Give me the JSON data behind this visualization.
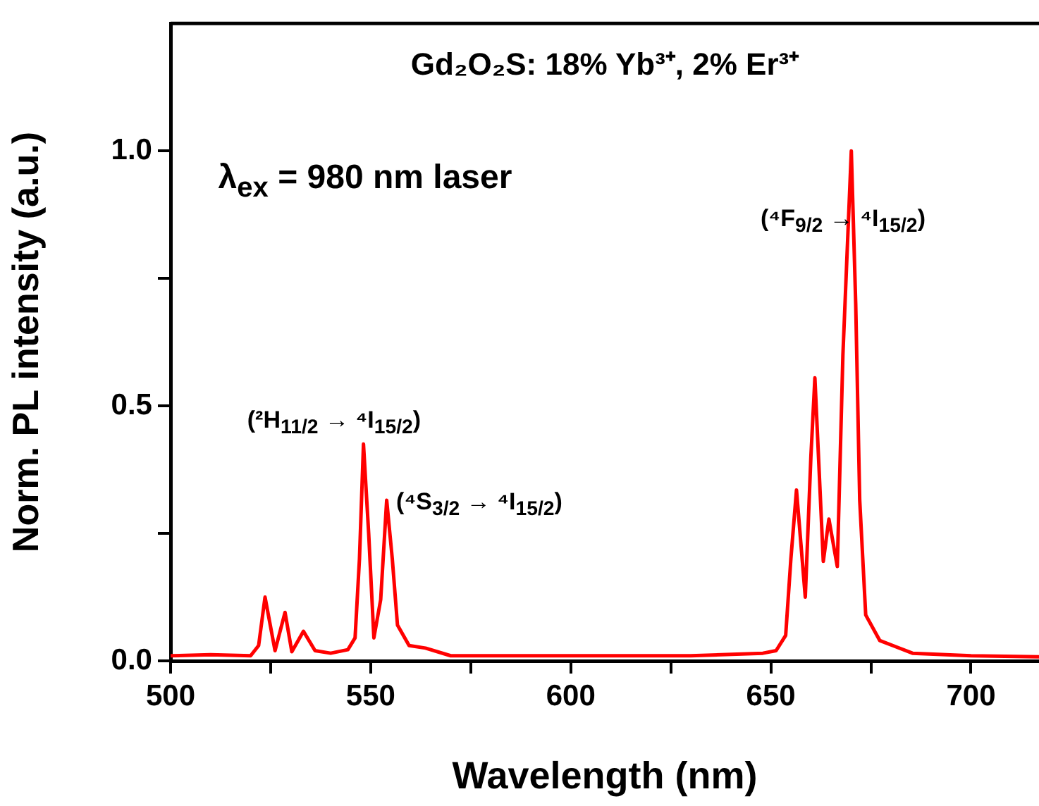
{
  "chart_data": {
    "type": "line",
    "title": "Gd₂O₂S: 18% Yb³⁺, 2% Er³⁺",
    "xlabel": "Wavelength (nm)",
    "ylabel": "Norm. PL intensity (a.u.)",
    "x": [
      500,
      510,
      520,
      522,
      523.6,
      526.1,
      528.6,
      530.3,
      533.2,
      536.1,
      540,
      544.3,
      546.1,
      547.2,
      548.2,
      549.5,
      550.8,
      552.5,
      554.0,
      555.4,
      556.7,
      559.6,
      563.7,
      570,
      600,
      630,
      648,
      651.3,
      653.7,
      655,
      656.4,
      658.6,
      660,
      661.0,
      663.1,
      664.5,
      666.6,
      668,
      670.1,
      671.2,
      672.2,
      673.7,
      677.2,
      685.4,
      700,
      717
    ],
    "series": [
      {
        "color": "#ff0000",
        "values": [
          0.01,
          0.012,
          0.01,
          0.03,
          0.125,
          0.02,
          0.095,
          0.018,
          0.058,
          0.02,
          0.015,
          0.022,
          0.045,
          0.2,
          0.425,
          0.25,
          0.045,
          0.12,
          0.315,
          0.2,
          0.07,
          0.03,
          0.025,
          0.01,
          0.01,
          0.01,
          0.015,
          0.02,
          0.05,
          0.2,
          0.335,
          0.125,
          0.4,
          0.555,
          0.195,
          0.278,
          0.185,
          0.6,
          1.0,
          0.7,
          0.315,
          0.09,
          0.04,
          0.015,
          0.01,
          0.008
        ]
      }
    ],
    "xlim": [
      500,
      717
    ],
    "ylim": [
      0,
      1.25
    ],
    "xticks": [
      500,
      {
        "value": 525,
        "label": null
      },
      550,
      {
        "value": 575,
        "label": null
      },
      600,
      {
        "value": 625,
        "label": null
      },
      650,
      {
        "value": 675,
        "label": null
      },
      700
    ],
    "yticks": [
      {
        "value": 0,
        "label": "0.0"
      },
      {
        "value": 0.25,
        "label": null
      },
      {
        "value": 0.5,
        "label": "0.5"
      },
      {
        "value": 0.75,
        "label": null
      },
      {
        "value": 1,
        "label": "1.0"
      }
    ],
    "marker": "none",
    "line_style": "solid",
    "annotations": [
      "λ$_{ex}$ = 980 nm laser",
      "(²H$_{11/2}$ → ⁴I$_{15/2}$)",
      "(⁴S$_{3/2}$ → ⁴I$_{15/2}$)",
      "(⁴F$_{9/2}$ → ⁴I$_{15/2}$)"
    ]
  }
}
